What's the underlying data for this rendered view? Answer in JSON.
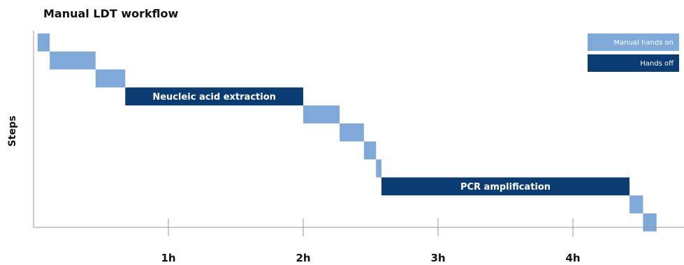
{
  "chart_data": {
    "type": "bar",
    "title": "Manual LDT workflow",
    "ylabel": "Steps",
    "xlabel": "",
    "xlim": [
      0,
      4.7
    ],
    "x_ticks": [
      {
        "value": 1,
        "label": "1h"
      },
      {
        "value": 2,
        "label": "2h"
      },
      {
        "value": 3,
        "label": "3h"
      },
      {
        "value": 4,
        "label": "4h"
      }
    ],
    "legend": {
      "position": "top-right",
      "items": [
        {
          "key": "manual",
          "label": "Manual hands on",
          "color": "#7ea9d9"
        },
        {
          "key": "auto",
          "label": "Hands off",
          "color": "#0b3c71"
        }
      ]
    },
    "steps": [
      {
        "start": 0.03,
        "end": 0.12,
        "kind": "manual",
        "label": ""
      },
      {
        "start": 0.12,
        "end": 0.46,
        "kind": "manual",
        "label": ""
      },
      {
        "start": 0.46,
        "end": 0.68,
        "kind": "manual",
        "label": ""
      },
      {
        "start": 0.68,
        "end": 2.0,
        "kind": "auto",
        "label": "Neucleic acid extraction"
      },
      {
        "start": 2.0,
        "end": 2.27,
        "kind": "manual",
        "label": ""
      },
      {
        "start": 2.27,
        "end": 2.45,
        "kind": "manual",
        "label": ""
      },
      {
        "start": 2.45,
        "end": 2.54,
        "kind": "manual",
        "label": ""
      },
      {
        "start": 2.54,
        "end": 2.58,
        "kind": "manual",
        "label": ""
      },
      {
        "start": 2.58,
        "end": 4.42,
        "kind": "auto",
        "label": "PCR amplification"
      },
      {
        "start": 4.42,
        "end": 4.52,
        "kind": "manual",
        "label": ""
      },
      {
        "start": 4.52,
        "end": 4.62,
        "kind": "manual",
        "label": ""
      }
    ]
  }
}
